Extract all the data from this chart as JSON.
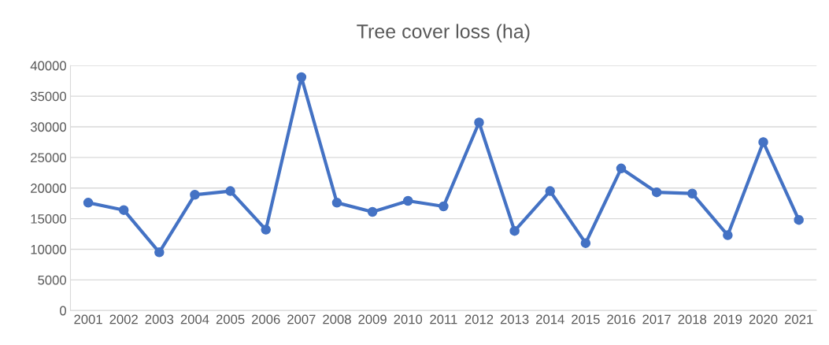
{
  "chart_data": {
    "type": "line",
    "title": "Tree cover loss (ha)",
    "categories": [
      "2001",
      "2002",
      "2003",
      "2004",
      "2005",
      "2006",
      "2007",
      "2008",
      "2009",
      "2010",
      "2011",
      "2012",
      "2013",
      "2014",
      "2015",
      "2016",
      "2017",
      "2018",
      "2019",
      "2020",
      "2021"
    ],
    "series": [
      {
        "color": "#4472c4",
        "values": [
          17600,
          16400,
          9500,
          18900,
          19500,
          13200,
          38100,
          17600,
          16100,
          17900,
          17000,
          30700,
          13000,
          19500,
          11000,
          23200,
          19300,
          19100,
          12300,
          27500,
          14800
        ]
      }
    ],
    "ylim": [
      0,
      40000
    ],
    "yticks": [
      0,
      5000,
      10000,
      15000,
      20000,
      25000,
      30000,
      35000,
      40000
    ],
    "grid": "y",
    "marker": "circle",
    "line_style": "solid",
    "legend": false
  }
}
